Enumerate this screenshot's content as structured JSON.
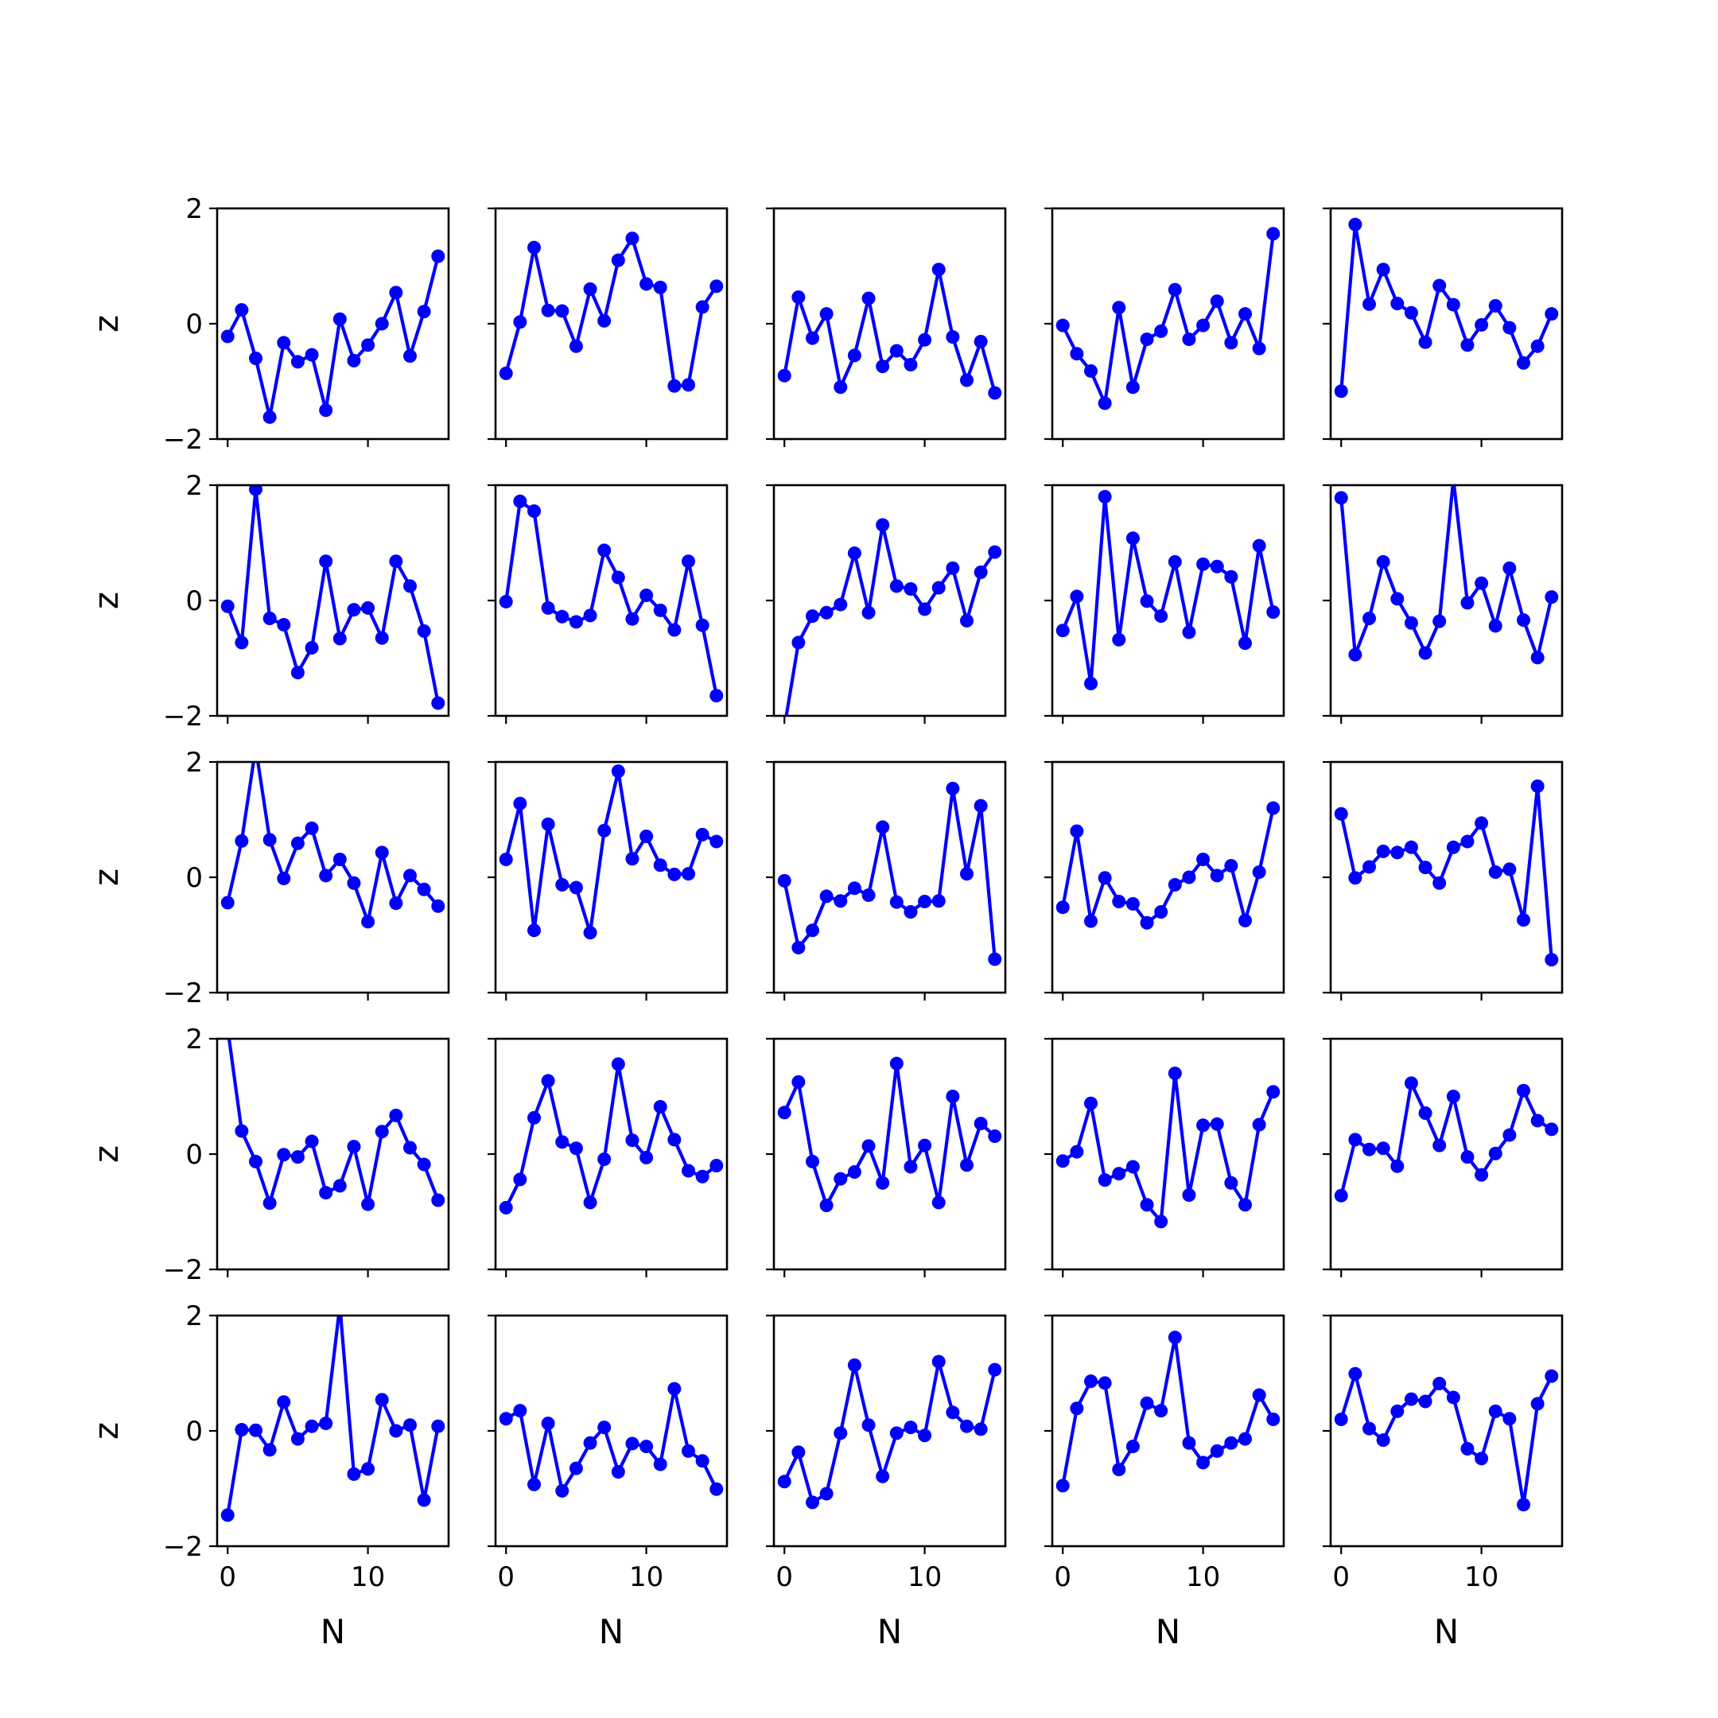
{
  "chart_data": {
    "type": "line",
    "layout": {
      "rows": 5,
      "cols": 5
    },
    "shared_x": true,
    "shared_y": true,
    "xlabel": "N",
    "ylabel": "z",
    "xlim": [
      -0.75,
      15.75
    ],
    "ylim": [
      -2,
      2
    ],
    "xticks": [
      0,
      10
    ],
    "xtick_labels": [
      "0",
      "10"
    ],
    "yticks": [
      -2,
      0,
      2
    ],
    "ytick_labels": [
      "−2",
      "0",
      "2"
    ],
    "grid": false,
    "legend": "none",
    "line_color": "#0000ff",
    "marker": "circle",
    "x": [
      0,
      1,
      2,
      3,
      4,
      5,
      6,
      7,
      8,
      9,
      10,
      11,
      12,
      13,
      14,
      15
    ],
    "subplots": [
      {
        "row": 0,
        "col": 0,
        "values": [
          -0.22,
          0.24,
          -0.6,
          -1.62,
          -0.33,
          -0.66,
          -0.54,
          -1.5,
          0.08,
          -0.64,
          -0.37,
          0.0,
          0.54,
          -0.56,
          0.21,
          1.17
        ]
      },
      {
        "row": 0,
        "col": 1,
        "values": [
          -0.86,
          0.03,
          1.32,
          0.23,
          0.22,
          -0.39,
          0.6,
          0.05,
          1.1,
          1.48,
          0.69,
          0.63,
          -1.08,
          -1.06,
          0.29,
          0.65
        ]
      },
      {
        "row": 0,
        "col": 2,
        "values": [
          -0.9,
          0.46,
          -0.25,
          0.17,
          -1.1,
          -0.55,
          0.44,
          -0.74,
          -0.47,
          -0.71,
          -0.28,
          0.94,
          -0.23,
          -0.98,
          -0.31,
          -1.2
        ]
      },
      {
        "row": 0,
        "col": 3,
        "values": [
          -0.03,
          -0.52,
          -0.82,
          -1.38,
          0.28,
          -1.1,
          -0.27,
          -0.13,
          0.59,
          -0.27,
          -0.03,
          0.39,
          -0.33,
          0.17,
          -0.43,
          1.56
        ]
      },
      {
        "row": 0,
        "col": 4,
        "values": [
          -1.17,
          1.72,
          0.34,
          0.94,
          0.35,
          0.19,
          -0.32,
          0.66,
          0.33,
          -0.37,
          -0.02,
          0.31,
          -0.07,
          -0.68,
          -0.39,
          0.17
        ]
      },
      {
        "row": 1,
        "col": 0,
        "values": [
          -0.1,
          -0.73,
          1.93,
          -0.31,
          -0.42,
          -1.25,
          -0.82,
          0.68,
          -0.66,
          -0.16,
          -0.13,
          -0.65,
          0.68,
          0.25,
          -0.53,
          -1.78
        ]
      },
      {
        "row": 1,
        "col": 1,
        "values": [
          -0.02,
          1.72,
          1.55,
          -0.13,
          -0.28,
          -0.37,
          -0.26,
          0.87,
          0.4,
          -0.32,
          0.09,
          -0.17,
          -0.51,
          0.68,
          -0.43,
          -1.65
        ]
      },
      {
        "row": 1,
        "col": 2,
        "values": [
          -2.2,
          -0.73,
          -0.27,
          -0.21,
          -0.07,
          0.82,
          -0.21,
          1.31,
          0.25,
          0.2,
          -0.15,
          0.22,
          0.56,
          -0.35,
          0.49,
          0.84
        ]
      },
      {
        "row": 1,
        "col": 3,
        "values": [
          -0.52,
          0.07,
          -1.44,
          1.8,
          -0.68,
          1.08,
          -0.01,
          -0.27,
          0.67,
          -0.55,
          0.63,
          0.59,
          0.41,
          -0.74,
          0.95,
          -0.2
        ]
      },
      {
        "row": 1,
        "col": 4,
        "values": [
          1.78,
          -0.94,
          -0.31,
          0.67,
          0.03,
          -0.39,
          -0.91,
          -0.36,
          2.1,
          -0.04,
          0.3,
          -0.44,
          0.56,
          -0.34,
          -0.99,
          0.06
        ]
      },
      {
        "row": 2,
        "col": 0,
        "values": [
          -0.44,
          0.63,
          2.25,
          0.65,
          -0.02,
          0.59,
          0.85,
          0.03,
          0.31,
          -0.1,
          -0.77,
          0.43,
          -0.45,
          0.03,
          -0.21,
          -0.5
        ]
      },
      {
        "row": 2,
        "col": 1,
        "values": [
          0.31,
          1.28,
          -0.92,
          0.92,
          -0.13,
          -0.18,
          -0.96,
          0.81,
          1.84,
          0.32,
          0.71,
          0.21,
          0.05,
          0.06,
          0.74,
          0.62
        ]
      },
      {
        "row": 2,
        "col": 2,
        "values": [
          -0.06,
          -1.22,
          -0.92,
          -0.33,
          -0.41,
          -0.19,
          -0.31,
          0.87,
          -0.43,
          -0.6,
          -0.42,
          -0.41,
          1.54,
          0.06,
          1.24,
          -1.42
        ]
      },
      {
        "row": 2,
        "col": 3,
        "values": [
          -0.52,
          0.8,
          -0.76,
          -0.01,
          -0.42,
          -0.46,
          -0.79,
          -0.6,
          -0.13,
          0.0,
          0.31,
          0.03,
          0.2,
          -0.75,
          0.09,
          1.2
        ]
      },
      {
        "row": 2,
        "col": 4,
        "values": [
          1.1,
          -0.01,
          0.18,
          0.45,
          0.43,
          0.52,
          0.17,
          -0.1,
          0.52,
          0.62,
          0.94,
          0.09,
          0.14,
          -0.74,
          1.58,
          -1.43
        ]
      },
      {
        "row": 3,
        "col": 0,
        "values": [
          2.18,
          0.4,
          -0.13,
          -0.85,
          -0.01,
          -0.05,
          0.22,
          -0.67,
          -0.55,
          0.13,
          -0.87,
          0.39,
          0.67,
          0.11,
          -0.18,
          -0.8
        ]
      },
      {
        "row": 3,
        "col": 1,
        "values": [
          -0.93,
          -0.44,
          0.63,
          1.27,
          0.21,
          0.1,
          -0.84,
          -0.09,
          1.56,
          0.24,
          -0.06,
          0.82,
          0.25,
          -0.29,
          -0.39,
          -0.2
        ]
      },
      {
        "row": 3,
        "col": 2,
        "values": [
          0.72,
          1.25,
          -0.13,
          -0.89,
          -0.43,
          -0.31,
          0.14,
          -0.5,
          1.57,
          -0.22,
          0.15,
          -0.84,
          1.0,
          -0.19,
          0.53,
          0.31
        ]
      },
      {
        "row": 3,
        "col": 3,
        "values": [
          -0.12,
          0.04,
          0.88,
          -0.45,
          -0.34,
          -0.22,
          -0.88,
          -1.17,
          1.4,
          -0.71,
          0.5,
          0.52,
          -0.5,
          -0.88,
          0.51,
          1.08
        ]
      },
      {
        "row": 3,
        "col": 4,
        "values": [
          -0.72,
          0.25,
          0.08,
          0.1,
          -0.21,
          1.23,
          0.71,
          0.15,
          1.0,
          -0.05,
          -0.36,
          0.01,
          0.33,
          1.1,
          0.58,
          0.43
        ]
      },
      {
        "row": 4,
        "col": 0,
        "values": [
          -1.46,
          0.02,
          0.01,
          -0.33,
          0.5,
          -0.14,
          0.08,
          0.13,
          2.17,
          -0.75,
          -0.66,
          0.54,
          0.0,
          0.1,
          -1.2,
          0.08
        ]
      },
      {
        "row": 4,
        "col": 1,
        "values": [
          0.21,
          0.35,
          -0.93,
          0.13,
          -1.04,
          -0.65,
          -0.21,
          0.06,
          -0.71,
          -0.22,
          -0.27,
          -0.58,
          0.73,
          -0.35,
          -0.52,
          -1.01
        ]
      },
      {
        "row": 4,
        "col": 2,
        "values": [
          -0.88,
          -0.37,
          -1.24,
          -1.09,
          -0.04,
          1.14,
          0.1,
          -0.79,
          -0.04,
          0.06,
          -0.08,
          1.2,
          0.32,
          0.08,
          0.03,
          1.06
        ]
      },
      {
        "row": 4,
        "col": 3,
        "values": [
          -0.95,
          0.39,
          0.86,
          0.83,
          -0.67,
          -0.27,
          0.48,
          0.35,
          1.62,
          -0.21,
          -0.55,
          -0.35,
          -0.21,
          -0.14,
          0.62,
          0.2
        ]
      },
      {
        "row": 4,
        "col": 4,
        "values": [
          0.2,
          0.99,
          0.04,
          -0.16,
          0.34,
          0.55,
          0.51,
          0.82,
          0.58,
          -0.31,
          -0.48,
          0.34,
          0.21,
          -1.28,
          0.47,
          0.95
        ]
      }
    ]
  }
}
